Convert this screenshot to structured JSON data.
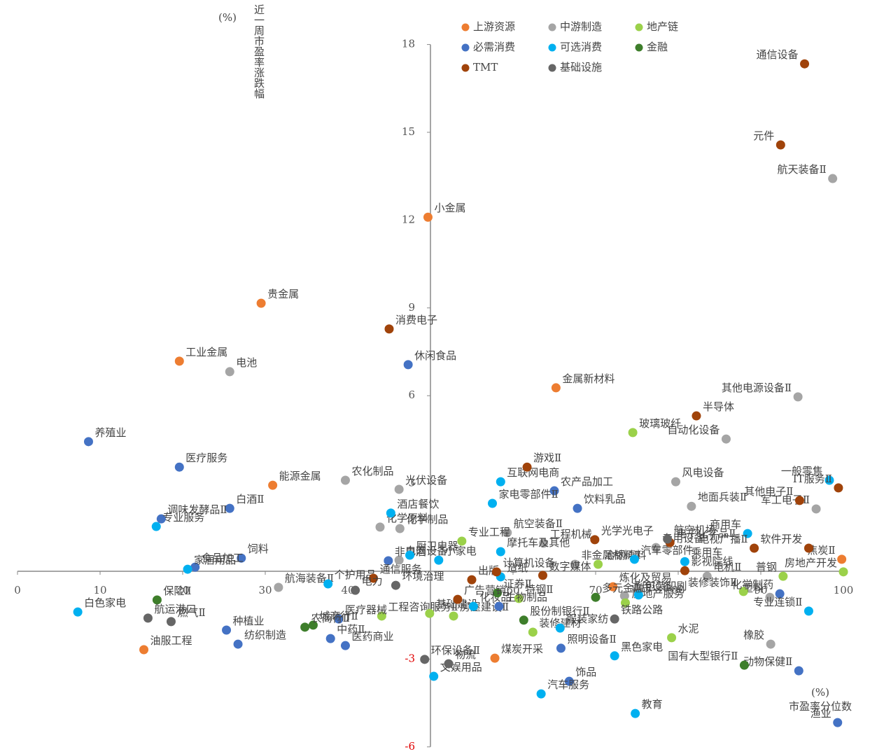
{
  "chart_data": {
    "type": "scatter",
    "y_unit": "(%)",
    "y_title": "近一周市盈率涨跌幅",
    "x_unit": "(%)",
    "x_title": "市盈率分位数",
    "xlim": [
      0,
      100
    ],
    "ylim": [
      -6,
      18
    ],
    "xticks": [
      0,
      10,
      20,
      30,
      40,
      60,
      70,
      80,
      90,
      100
    ],
    "yticks": [
      -6,
      -3,
      3,
      6,
      9,
      12,
      15,
      18
    ],
    "negative_tick_color": "#e00000",
    "series": [
      {
        "name": "上游资源",
        "color": "#ED7D31",
        "labels": [
          "小金属",
          "贵金属",
          "工业金属",
          "金属新材料",
          "能源金属",
          "焦炭Ⅱ",
          "油服工程",
          "煤炭开采",
          "炼化及贸易"
        ],
        "x": [
          49.7,
          29.5,
          19.6,
          65.2,
          30.9,
          99.8,
          15.3,
          57.8,
          72.1
        ],
        "values": [
          12.1,
          9.16,
          7.18,
          6.27,
          2.94,
          0.41,
          -2.68,
          -2.97,
          -0.53
        ]
      },
      {
        "name": "中游制造",
        "color": "#A5A5A5",
        "labels": [
          "电池",
          "航天装备Ⅱ",
          "其他电源设备Ⅱ",
          "自动化设备",
          "风电设备",
          "地面兵装Ⅱ",
          "军工电子Ⅱ",
          "农化制品",
          "光伏设备",
          "化学原料",
          "化学制品",
          "航空装备Ⅱ",
          "工程机械",
          "非金属材料Ⅱ",
          "电网设备",
          "通用设备",
          "电机Ⅱ",
          "橡胶",
          "塑料",
          "专用设备",
          "航海装备Ⅱ"
        ],
        "x": [
          25.7,
          98.7,
          94.5,
          85.8,
          79.7,
          81.6,
          96.7,
          39.7,
          46.2,
          43.9,
          46.3,
          59.3,
          63.7,
          67.5,
          46.2,
          73.5,
          83.5,
          91.2,
          91.1,
          77.3,
          31.6
        ],
        "values": [
          6.82,
          13.42,
          5.96,
          4.52,
          3.06,
          2.22,
          2.13,
          3.11,
          2.8,
          1.51,
          1.46,
          1.32,
          0.96,
          0.24,
          0.38,
          -0.84,
          -0.17,
          -2.49,
          -0.89,
          0.81,
          -0.55
        ]
      },
      {
        "name": "地产链",
        "color": "#9BD14A",
        "labels": [
          "玻璃玻纤",
          "专业工程",
          "装修建材",
          "房屋建设Ⅱ",
          "工程咨询服务Ⅱ",
          "基础建设",
          "装修装饰Ⅱ",
          "房地产服务",
          "水泥",
          "房地产开发",
          "普钢",
          "特钢Ⅱ",
          "冶钢原料"
        ],
        "x": [
          74.5,
          53.8,
          62.4,
          52.8,
          44.1,
          49.9,
          87.9,
          73.6,
          79.2,
          100,
          92.7,
          60.7,
          70.3
        ],
        "values": [
          4.74,
          1.03,
          -2.08,
          -1.53,
          -1.53,
          -1.44,
          -0.69,
          -1.08,
          -2.27,
          -0.02,
          -0.17,
          -0.93,
          0.24
        ]
      },
      {
        "name": "必需消费",
        "color": "#4472C4",
        "labels": [
          "休闲食品",
          "养殖业",
          "医疗服务",
          "白酒Ⅱ",
          "调味发酵品Ⅱ",
          "饲料",
          "食品加工",
          "农产品加工",
          "饮料乳品",
          "非白酒",
          "种植业",
          "纺织制造",
          "医疗器械",
          "中药Ⅱ",
          "医药商业",
          "生物制品",
          "照明设备Ⅱ",
          "饰品",
          "化学制药",
          "动物保健Ⅱ",
          "渔业"
        ],
        "x": [
          47.3,
          8.6,
          19.6,
          25.7,
          17.4,
          27.1,
          21.5,
          65.0,
          67.8,
          44.9,
          25.3,
          26.7,
          38.9,
          37.9,
          39.7,
          58.3,
          65.8,
          66.8,
          92.3,
          94.6,
          99.3
        ],
        "values": [
          7.06,
          4.43,
          3.56,
          2.15,
          1.79,
          0.45,
          0.14,
          2.75,
          2.15,
          0.36,
          -2.01,
          -2.49,
          -1.63,
          -2.3,
          -2.54,
          -1.2,
          -2.63,
          -3.76,
          -0.77,
          -3.4,
          -5.17
        ]
      },
      {
        "name": "可选消费",
        "color": "#00B0F0",
        "labels": [
          "白色家电",
          "家居用品",
          "专业服务",
          "酒店餐饮",
          "互联网电商",
          "家电零部件Ⅱ",
          "厨卫电器",
          "摩托车及其他",
          "小家电",
          "商用车",
          "乘用车",
          "汽车零部件",
          "一般零售",
          "包装印刷",
          "黑色家电",
          "教育",
          "汽车服务",
          "服装家纺",
          "专业连锁Ⅱ",
          "文娱用品",
          "化妆品",
          "个护用品",
          "造纸"
        ],
        "x": [
          7.3,
          20.6,
          16.8,
          45.2,
          58.5,
          57.5,
          47.5,
          58.5,
          51.0,
          88.4,
          80.8,
          74.7,
          98.3,
          75.2,
          72.3,
          74.8,
          63.4,
          65.7,
          95.8,
          50.4,
          55.2,
          37.6,
          58.5
        ],
        "values": [
          -1.39,
          0.07,
          1.53,
          1.99,
          3.06,
          2.32,
          0.55,
          0.67,
          0.38,
          1.29,
          0.33,
          0.41,
          3.11,
          -0.81,
          -2.89,
          -4.86,
          -4.19,
          -1.94,
          -1.36,
          -3.59,
          -1.2,
          -0.43,
          -0.19
        ]
      },
      {
        "name": "金融",
        "color": "#3E7E2B",
        "labels": [
          "保险Ⅱ",
          "城商行Ⅱ",
          "农商行Ⅱ",
          "证券Ⅱ",
          "多元金融",
          "股份制银行Ⅱ",
          "国有大型银行Ⅱ"
        ],
        "x": [
          16.9,
          35.8,
          34.8,
          58.1,
          70.0,
          61.3,
          88.0
        ],
        "values": [
          -0.98,
          -1.84,
          -1.91,
          -0.74,
          -0.89,
          -1.67,
          -3.21
        ]
      },
      {
        "name": "TMT",
        "color": "#A0430A",
        "labels": [
          "通信设备",
          "元件",
          "消费电子",
          "半导体",
          "游戏Ⅱ",
          "其他电子Ⅱ",
          "IT服务Ⅱ",
          "光学光电子",
          "电子化学品Ⅱ",
          "软件开发",
          "电视广播Ⅱ",
          "影视院线",
          "数字媒体",
          "出版",
          "广告营销",
          "通信服务",
          "计算机设备"
        ],
        "x": [
          95.3,
          92.4,
          45.0,
          82.2,
          61.7,
          94.7,
          99.4,
          69.9,
          79.0,
          95.8,
          89.2,
          80.8,
          63.6,
          55.0,
          53.3,
          43.1,
          58.0
        ],
        "values": [
          17.34,
          14.57,
          8.28,
          5.31,
          3.56,
          2.42,
          2.85,
          1.08,
          0.98,
          0.79,
          0.79,
          0.02,
          -0.14,
          -0.29,
          -0.96,
          -0.24,
          -0.02
        ]
      },
      {
        "name": "基础设施",
        "color": "#666666",
        "labels": [
          "航运港口",
          "燃气Ⅱ",
          "环保设备Ⅱ",
          "物流",
          "铁路公路",
          "电力",
          "环境治理",
          "航空机场"
        ],
        "x": [
          15.8,
          18.6,
          49.3,
          52.2,
          72.3,
          40.9,
          45.8,
          78.7
        ],
        "values": [
          -1.6,
          -1.72,
          -3.01,
          -3.16,
          -1.63,
          -0.65,
          -0.48,
          1.1
        ]
      }
    ]
  }
}
